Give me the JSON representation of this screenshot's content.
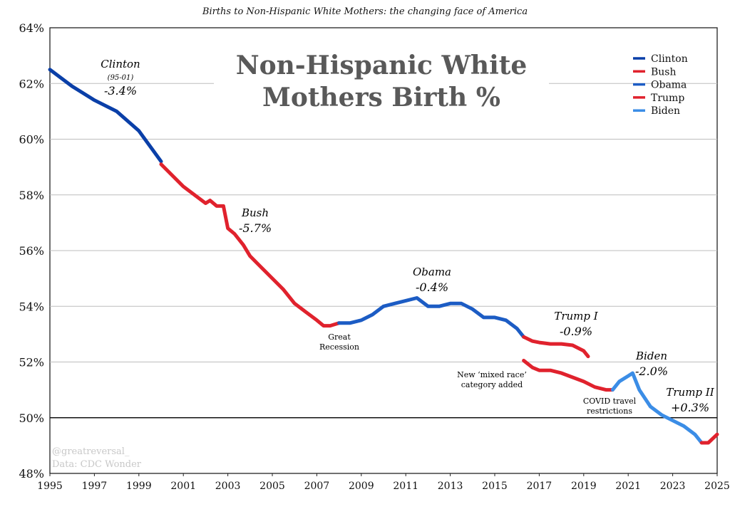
{
  "chart_data": {
    "type": "line",
    "title": "Births to Non-Hispanic White Mothers: the changing face of America",
    "inset_title": [
      "Non-Hispanic White",
      "Mothers Birth %"
    ],
    "xlabel": "",
    "ylabel": "",
    "xlim": [
      1995,
      2025
    ],
    "ylim": [
      48,
      64
    ],
    "x_ticks": [
      "1995",
      "1997",
      "1999",
      "2001",
      "2003",
      "2005",
      "2007",
      "2009",
      "2011",
      "2013",
      "2015",
      "2017",
      "2019",
      "2021",
      "2023",
      "2025"
    ],
    "y_ticks": [
      "48%",
      "50%",
      "52%",
      "54%",
      "56%",
      "58%",
      "60%",
      "62%",
      "64%"
    ],
    "grid": true,
    "legend_position": "top-right",
    "legend": [
      {
        "name": "Clinton",
        "color": "#0a3fa8"
      },
      {
        "name": "Bush",
        "color": "#e0222d"
      },
      {
        "name": "Obama",
        "color": "#1c5cc4"
      },
      {
        "name": "Trump",
        "color": "#e0222d"
      },
      {
        "name": "Biden",
        "color": "#3b8de6"
      }
    ],
    "series": [
      {
        "name": "Clinton",
        "color": "#0a3fa8",
        "x": [
          1995.0,
          1996.0,
          1997.0,
          1998.0,
          1999.0,
          2000.0
        ],
        "y": [
          62.5,
          61.9,
          61.4,
          61.0,
          60.3,
          59.2
        ]
      },
      {
        "name": "Bush",
        "color": "#e0222d",
        "x": [
          2000.0,
          2000.5,
          2001.0,
          2001.5,
          2002.0,
          2002.2,
          2002.5,
          2002.8,
          2003.0,
          2003.3,
          2003.7,
          2004.0,
          2004.5,
          2005.0,
          2005.5,
          2006.0,
          2006.5,
          2007.0,
          2007.3,
          2007.6,
          2008.0
        ],
        "y": [
          59.1,
          58.7,
          58.3,
          58.0,
          57.7,
          57.8,
          57.6,
          57.6,
          56.8,
          56.6,
          56.2,
          55.8,
          55.4,
          55.0,
          54.6,
          54.1,
          53.8,
          53.5,
          53.3,
          53.3,
          53.4
        ]
      },
      {
        "name": "Obama",
        "color": "#1c5cc4",
        "x": [
          2008.0,
          2008.5,
          2009.0,
          2009.5,
          2010.0,
          2010.5,
          2011.0,
          2011.5,
          2012.0,
          2012.5,
          2013.0,
          2013.5,
          2014.0,
          2014.5,
          2015.0,
          2015.5,
          2016.0,
          2016.3
        ],
        "y": [
          53.4,
          53.4,
          53.5,
          53.7,
          54.0,
          54.1,
          54.2,
          54.3,
          54.0,
          54.0,
          54.1,
          54.1,
          53.9,
          53.6,
          53.6,
          53.5,
          53.2,
          52.9
        ]
      },
      {
        "name": "Trump I",
        "color": "#e0222d",
        "x": [
          2016.3,
          2016.7,
          2017.0,
          2017.5,
          2018.0,
          2018.5,
          2019.0,
          2019.2
        ],
        "y": [
          52.9,
          52.75,
          52.7,
          52.65,
          52.65,
          52.6,
          52.4,
          52.2
        ]
      },
      {
        "name": "Trump I (new mixed race category)",
        "color": "#e0222d",
        "x": [
          2016.3,
          2016.7,
          2017.0,
          2017.5,
          2018.0,
          2018.5,
          2019.0,
          2019.5,
          2020.0,
          2020.3
        ],
        "y": [
          52.05,
          51.8,
          51.7,
          51.7,
          51.6,
          51.45,
          51.3,
          51.1,
          51.0,
          51.0
        ]
      },
      {
        "name": "Biden",
        "color": "#3b8de6",
        "x": [
          2020.3,
          2020.6,
          2021.0,
          2021.2,
          2021.5,
          2022.0,
          2022.5,
          2023.0,
          2023.5,
          2024.0,
          2024.3
        ],
        "y": [
          51.0,
          51.3,
          51.5,
          51.6,
          51.0,
          50.4,
          50.1,
          49.9,
          49.7,
          49.4,
          49.1
        ]
      },
      {
        "name": "Trump II",
        "color": "#e0222d",
        "x": [
          2024.3,
          2024.6,
          2025.0
        ],
        "y": [
          49.1,
          49.1,
          49.4
        ]
      }
    ],
    "annotations": [
      {
        "id": "clinton-name",
        "text": "Clinton"
      },
      {
        "id": "clinton-years",
        "text": "(95-01)"
      },
      {
        "id": "clinton-change",
        "text": "-3.4%"
      },
      {
        "id": "bush-name",
        "text": "Bush"
      },
      {
        "id": "bush-change",
        "text": "-5.7%"
      },
      {
        "id": "obama-name",
        "text": "Obama"
      },
      {
        "id": "obama-change",
        "text": "-0.4%"
      },
      {
        "id": "trump1-name",
        "text": "Trump I"
      },
      {
        "id": "trump1-change",
        "text": "-0.9%"
      },
      {
        "id": "biden-name",
        "text": "Biden"
      },
      {
        "id": "biden-change",
        "text": "-2.0%"
      },
      {
        "id": "trump2-name",
        "text": "Trump II"
      },
      {
        "id": "trump2-change",
        "text": "+0.3%"
      },
      {
        "id": "recession-1",
        "text": "Great"
      },
      {
        "id": "recession-2",
        "text": "Recession"
      },
      {
        "id": "mixed-1",
        "text": "New ‘mixed race’"
      },
      {
        "id": "mixed-2",
        "text": "category added"
      },
      {
        "id": "covid-1",
        "text": "COVID travel"
      },
      {
        "id": "covid-2",
        "text": "restrictions"
      }
    ],
    "watermark": [
      "@greatreversal_",
      "Data: CDC Wonder"
    ]
  }
}
